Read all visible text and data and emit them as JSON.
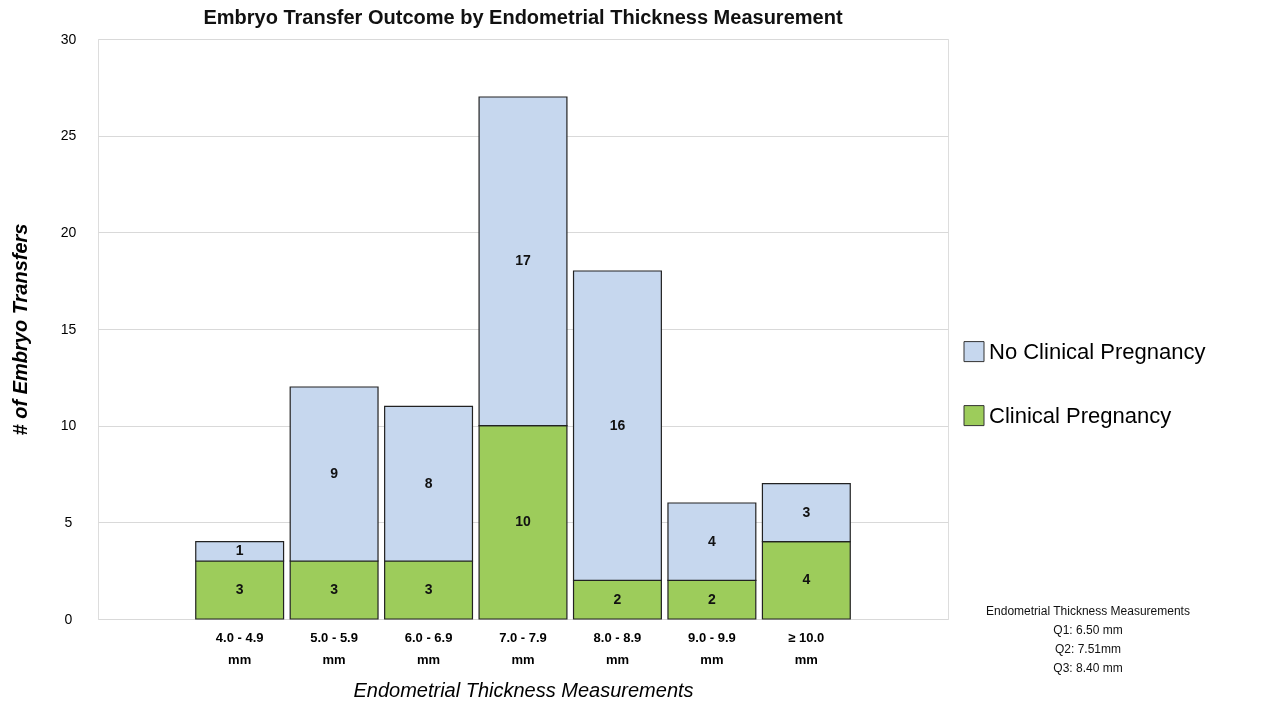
{
  "chart_data": {
    "type": "bar",
    "title": "Embryo Transfer Outcome by Endometrial Thickness Measurement",
    "xlabel": "Endometrial Thickness Measurements",
    "ylabel": "# of Embryo Transfers",
    "categories": [
      "4.0 - 4.9 mm",
      "5.0 - 5.9 mm",
      "6.0 - 6.9 mm",
      "7.0 - 7.9 mm",
      "8.0 - 8.9 mm",
      "9.0 - 9.9 mm",
      "≥ 10.0 mm"
    ],
    "series": [
      {
        "name": "Clinical Pregnancy",
        "color": "#9dcc5b",
        "values": [
          3,
          3,
          3,
          10,
          2,
          2,
          4
        ]
      },
      {
        "name": "No Clinical Pregnancy",
        "color": "#c6d7ee",
        "values": [
          1,
          9,
          8,
          17,
          16,
          4,
          3
        ]
      }
    ],
    "stacked": true,
    "data_labels": true,
    "ylim": [
      0,
      30
    ],
    "yticks": [
      0,
      5,
      10,
      15,
      20,
      25,
      30
    ],
    "grid": "y",
    "legend": "right",
    "annotations": [
      "Endometrial Thickness Measurements",
      "Q1: 6.50 mm",
      "Q2: 7.51mm",
      "Q3: 8.40 mm"
    ]
  }
}
